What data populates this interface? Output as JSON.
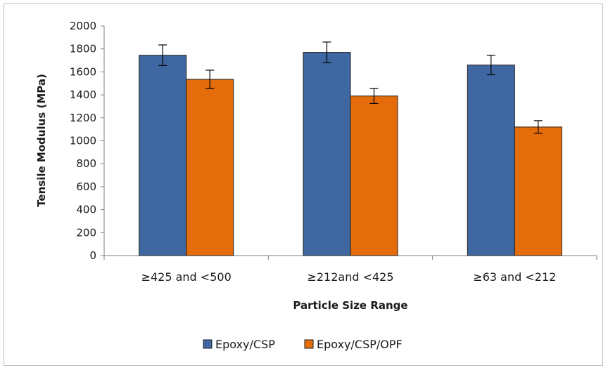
{
  "chart_data": {
    "type": "bar",
    "title": "",
    "xlabel": "Particle Size Range",
    "ylabel": "Tensile Modulus (MPa)",
    "ylim": [
      0,
      2000
    ],
    "yticks": [
      0,
      200,
      400,
      600,
      800,
      1000,
      1200,
      1400,
      1600,
      1800,
      2000
    ],
    "ytick_labels": [
      "0",
      "200",
      "400",
      "600",
      "800",
      "1000",
      "1200",
      "1400",
      "1600",
      "1800",
      "2000"
    ],
    "categories": [
      "≥425 and <500",
      "≥212and <425",
      "≥63 and <212"
    ],
    "series": [
      {
        "name": "Epoxy/CSP",
        "color": "#3f67a2",
        "values": [
          1745,
          1770,
          1660
        ],
        "errors": [
          90,
          90,
          85
        ]
      },
      {
        "name": "Epoxy/CSP/OPF",
        "color": "#e46c0a",
        "values": [
          1535,
          1390,
          1120
        ],
        "errors": [
          80,
          65,
          55
        ]
      }
    ],
    "grid": false,
    "legend_position": "bottom"
  }
}
